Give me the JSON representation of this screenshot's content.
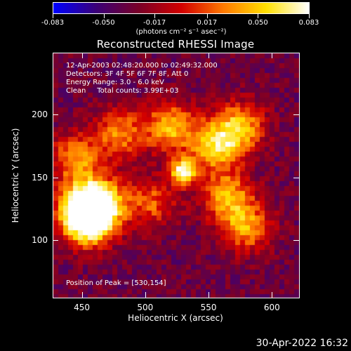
{
  "colorbar": {
    "tick_labels": [
      "-0.083",
      "-0.050",
      "-0.017",
      "0.017",
      "0.050",
      "0.083"
    ],
    "tick_values": [
      -0.083,
      -0.05,
      -0.017,
      0.017,
      0.05,
      0.083
    ],
    "range": [
      -0.083,
      0.083
    ],
    "units": "(photons cm⁻² s⁻¹ asec⁻²)",
    "colormap": [
      "#0000ff",
      "#3b0078",
      "#7a0028",
      "#d20000",
      "#ff7a00",
      "#ffe000",
      "#ffffff"
    ]
  },
  "title": "Reconstructed RHESSI Image",
  "info": {
    "time_range": "12-Apr-2003 02:48:20.000 to 02:49:32.000",
    "detectors": "Detectors: 3F 4F 5F 6F 7F 8F, Att 0",
    "energy_range": "Energy Range: 3.0 - 6.0 keV",
    "clean_counts": "Clean     Total counts: 3.99E+03"
  },
  "peak_position": "Position of Peak = [530,154]",
  "x_axis": {
    "title": "Heliocentric X (arcsec)",
    "tick_labels": [
      "450",
      "500",
      "550",
      "600"
    ],
    "tick_values": [
      450,
      500,
      550,
      600
    ],
    "range": [
      427,
      622
    ]
  },
  "y_axis": {
    "title": "Heliocentric Y (arcsec)",
    "tick_labels": [
      "100",
      "150",
      "200"
    ],
    "tick_values": [
      100,
      150,
      200
    ],
    "range": [
      54,
      249
    ]
  },
  "image_sources": [
    {
      "x": 530,
      "y": 154,
      "value": 0.083
    },
    {
      "x": 455,
      "y": 115,
      "value": 0.07
    },
    {
      "x": 450,
      "y": 125,
      "value": 0.06
    },
    {
      "x": 465,
      "y": 130,
      "value": 0.055
    },
    {
      "x": 520,
      "y": 190,
      "value": 0.045
    },
    {
      "x": 555,
      "y": 175,
      "value": 0.05
    },
    {
      "x": 575,
      "y": 190,
      "value": 0.045
    },
    {
      "x": 565,
      "y": 135,
      "value": 0.04
    },
    {
      "x": 580,
      "y": 110,
      "value": 0.035
    },
    {
      "x": 445,
      "y": 165,
      "value": 0.035
    },
    {
      "x": 480,
      "y": 185,
      "value": 0.03
    },
    {
      "x": 505,
      "y": 130,
      "value": 0.02
    }
  ],
  "timestamp": "30-Apr-2022 16:32"
}
